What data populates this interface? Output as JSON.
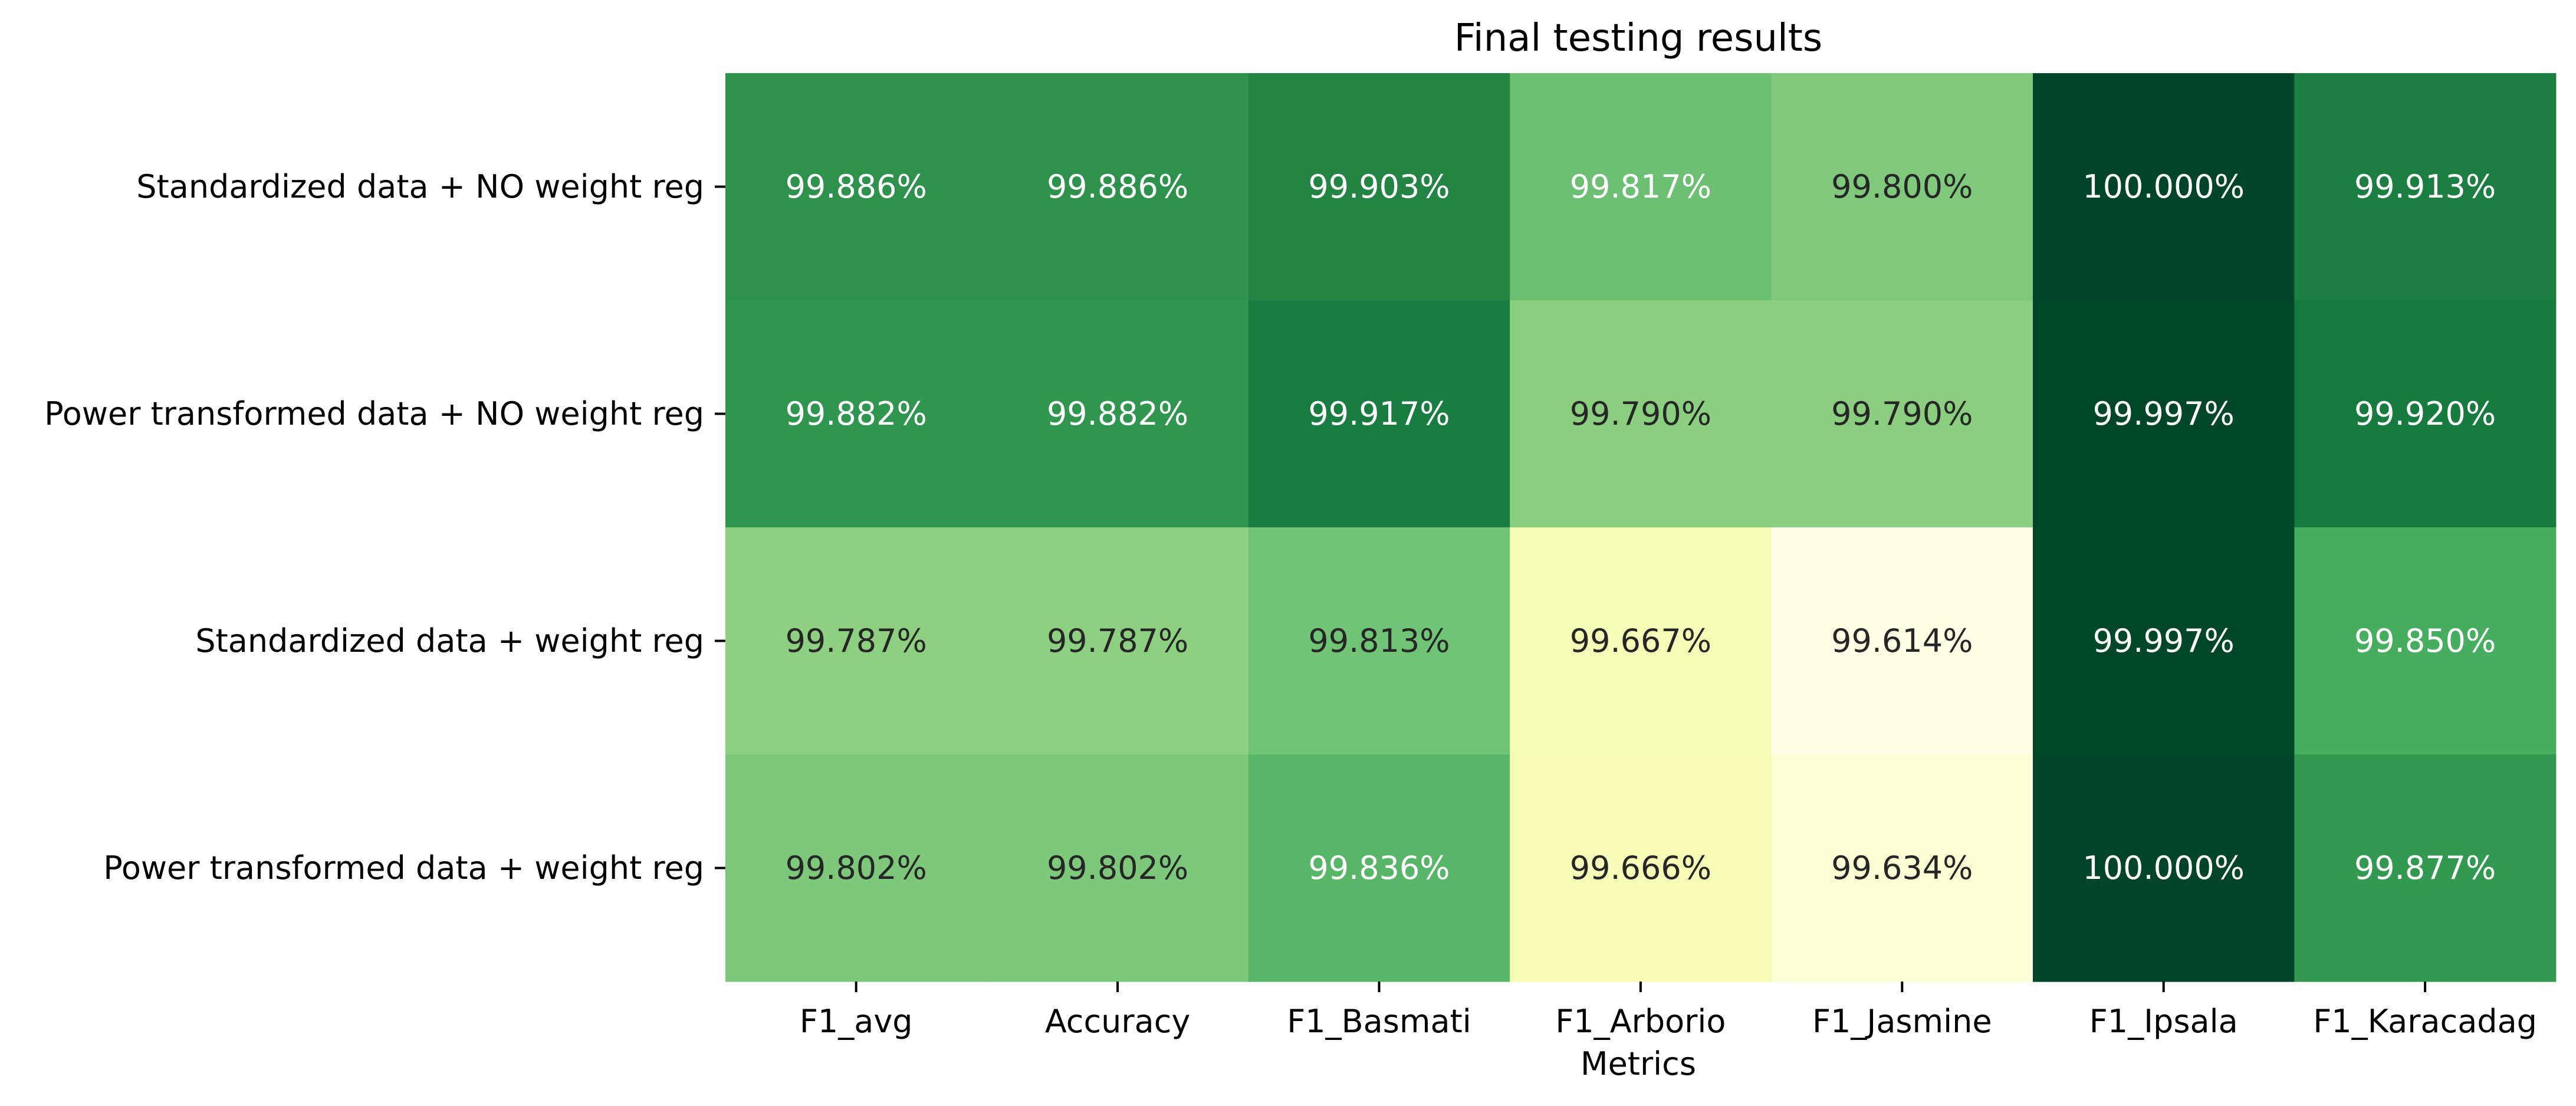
{
  "chart_data": {
    "type": "heatmap",
    "title": "Final testing results",
    "xlabel": "Metrics",
    "ylabel": "",
    "columns": [
      "F1_avg",
      "Accuracy",
      "F1_Basmati",
      "F1_Arborio",
      "F1_Jasmine",
      "F1_Ipsala",
      "F1_Karacadag"
    ],
    "rows": [
      "Standardized data + NO weight reg",
      "Power transformed data + NO weight reg",
      "Standardized data + weight reg",
      "Power transformed data + weight reg"
    ],
    "values": [
      [
        99.886,
        99.886,
        99.903,
        99.817,
        99.8,
        100.0,
        99.913
      ],
      [
        99.882,
        99.882,
        99.917,
        99.79,
        99.79,
        99.997,
        99.92
      ],
      [
        99.787,
        99.787,
        99.813,
        99.667,
        99.614,
        99.997,
        99.85
      ],
      [
        99.802,
        99.802,
        99.836,
        99.666,
        99.634,
        100.0,
        99.877
      ]
    ],
    "cell_labels": [
      [
        "99.886%",
        "99.886%",
        "99.903%",
        "99.817%",
        "99.800%",
        "100.000%",
        "99.913%"
      ],
      [
        "99.882%",
        "99.882%",
        "99.917%",
        "99.790%",
        "99.790%",
        "99.997%",
        "99.920%"
      ],
      [
        "99.787%",
        "99.787%",
        "99.813%",
        "99.667%",
        "99.614%",
        "99.997%",
        "99.850%"
      ],
      [
        "99.802%",
        "99.802%",
        "99.836%",
        "99.666%",
        "99.634%",
        "100.000%",
        "99.877%"
      ]
    ],
    "colormap": "YlGn",
    "colorbar": false,
    "grid": false
  }
}
